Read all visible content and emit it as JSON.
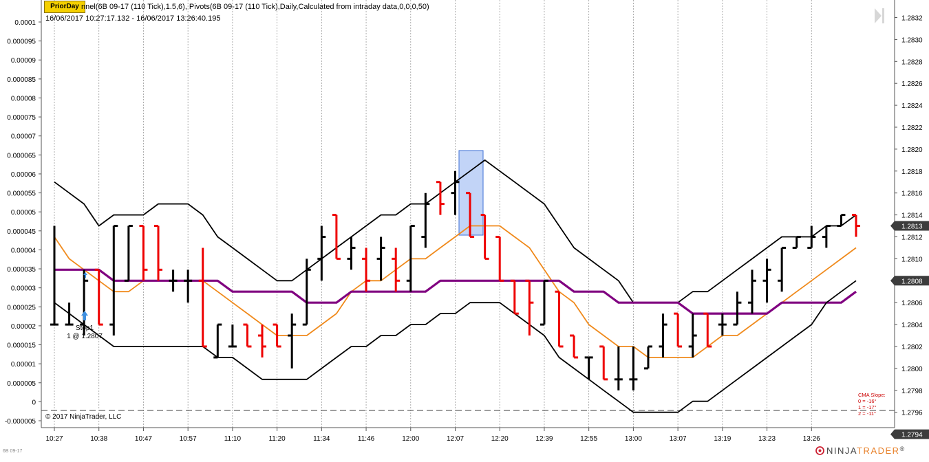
{
  "toolbar": {
    "prior_day_label": "PriorDay"
  },
  "header": {
    "indicator_line": "nnel(6B 09-17 (110 Tick),1.5,6), Pivots(6B 09-17 (110 Tick),Daily,Calculated from intraday data,0,0,0,50)",
    "date_range": "16/06/2017 10:27:17.132 - 16/06/2017 13:26:40.195"
  },
  "copyright": "© 2017 NinjaTrader, LLC",
  "instrument_tag": "6B 09-17",
  "brand": {
    "ninja": "NINJA",
    "trader": "TRADER"
  },
  "trade_marker": {
    "name": "Stop1",
    "detail": "1 @ 1.2807"
  },
  "slope_box": {
    "title": "CMA Slope:",
    "lines": [
      "0 = -16°",
      "1 = -17°",
      "2 = -11°"
    ]
  },
  "colors": {
    "up_bar": "#000000",
    "down_bar": "#ee0000",
    "cma": "#f08a1c",
    "purple_line": "#800080",
    "band": "#000000",
    "highlight": "#5b8fe6",
    "slope_text": "#cc0000"
  },
  "chart_data": {
    "type": "bar",
    "bar_style": "ohlc",
    "left_axis": {
      "ticks": [
        "0.0001",
        "0.000095",
        "0.00009",
        "0.000085",
        "0.00008",
        "0.000075",
        "0.00007",
        "0.000065",
        "0.00006",
        "0.000055",
        "0.00005",
        "0.000045",
        "0.00004",
        "0.000035",
        "0.00003",
        "0.000025",
        "0.00002",
        "0.000015",
        "0.00001",
        "0.000005",
        "0",
        "-0.000005"
      ],
      "range": [
        -5e-06,
        0.0001
      ]
    },
    "right_axis": {
      "ticks": [
        "1.2832",
        "1.2830",
        "1.2828",
        "1.2826",
        "1.2824",
        "1.2822",
        "1.2820",
        "1.2818",
        "1.2816",
        "1.2814",
        "1.2812",
        "1.2810",
        "1.2808",
        "1.2806",
        "1.2804",
        "1.2802",
        "1.2800",
        "1.2798",
        "1.2796"
      ],
      "range": [
        1.27946,
        1.28336
      ],
      "price_markers": [
        {
          "label": "1.2813",
          "value": 1.2813
        },
        {
          "label": "1.2808",
          "value": 1.2808
        },
        {
          "label": "1.2794",
          "value": 1.2794
        }
      ]
    },
    "x_axis": {
      "ticks": [
        "10:27",
        "10:38",
        "10:47",
        "10:57",
        "11:10",
        "11:20",
        "11:34",
        "11:46",
        "12:00",
        "12:07",
        "12:20",
        "12:39",
        "12:55",
        "13:00",
        "13:07",
        "13:19",
        "13:23",
        "13:26"
      ],
      "tick_bar_index": [
        0,
        3,
        6,
        9,
        12,
        15,
        18,
        21,
        24,
        27,
        30,
        33,
        36,
        39,
        42,
        45,
        48,
        51
      ]
    },
    "bars": [
      {
        "o": 1.2804,
        "h": 1.2813,
        "l": 1.2804,
        "c": 1.2804
      },
      {
        "o": 1.2804,
        "h": 1.2806,
        "l": 1.2804,
        "c": 1.2804
      },
      {
        "o": 1.2804,
        "h": 1.2809,
        "l": 1.2803,
        "c": 1.2808
      },
      {
        "o": 1.2809,
        "h": 1.2809,
        "l": 1.2804,
        "c": 1.2804
      },
      {
        "o": 1.2804,
        "h": 1.2813,
        "l": 1.2803,
        "c": 1.2813
      },
      {
        "o": 1.2808,
        "h": 1.2813,
        "l": 1.2808,
        "c": 1.2813
      },
      {
        "o": 1.2813,
        "h": 1.2813,
        "l": 1.2808,
        "c": 1.2809
      },
      {
        "o": 1.2813,
        "h": 1.2813,
        "l": 1.2808,
        "c": 1.2809
      },
      {
        "o": 1.2808,
        "h": 1.2809,
        "l": 1.2807,
        "c": 1.2808
      },
      {
        "o": 1.2808,
        "h": 1.2809,
        "l": 1.2806,
        "c": 1.2808
      },
      {
        "o": 1.2808,
        "h": 1.2811,
        "l": 1.2802,
        "c": 1.2802
      },
      {
        "o": 1.2801,
        "h": 1.2804,
        "l": 1.2801,
        "c": 1.2804
      },
      {
        "o": 1.2802,
        "h": 1.2804,
        "l": 1.2802,
        "c": 1.2802
      },
      {
        "o": 1.2804,
        "h": 1.2804,
        "l": 1.2802,
        "c": 1.2802
      },
      {
        "o": 1.2803,
        "h": 1.2804,
        "l": 1.2801,
        "c": 1.2802
      },
      {
        "o": 1.2804,
        "h": 1.2804,
        "l": 1.2802,
        "c": 1.2802
      },
      {
        "o": 1.2803,
        "h": 1.2805,
        "l": 1.28,
        "c": 1.2804
      },
      {
        "o": 1.2804,
        "h": 1.281,
        "l": 1.2804,
        "c": 1.2809
      },
      {
        "o": 1.281,
        "h": 1.2813,
        "l": 1.2808,
        "c": 1.2812
      },
      {
        "o": 1.2814,
        "h": 1.2814,
        "l": 1.281,
        "c": 1.281
      },
      {
        "o": 1.281,
        "h": 1.2812,
        "l": 1.2809,
        "c": 1.2811
      },
      {
        "o": 1.281,
        "h": 1.2811,
        "l": 1.2807,
        "c": 1.2808
      },
      {
        "o": 1.281,
        "h": 1.2812,
        "l": 1.2808,
        "c": 1.2811
      },
      {
        "o": 1.281,
        "h": 1.2811,
        "l": 1.2807,
        "c": 1.2808
      },
      {
        "o": 1.2808,
        "h": 1.2813,
        "l": 1.2807,
        "c": 1.2813
      },
      {
        "o": 1.2812,
        "h": 1.2816,
        "l": 1.2811,
        "c": 1.2815
      },
      {
        "o": 1.2817,
        "h": 1.2817,
        "l": 1.2814,
        "c": 1.2815
      },
      {
        "o": 1.2816,
        "h": 1.2818,
        "l": 1.2814,
        "c": 1.2817
      },
      {
        "o": 1.2816,
        "h": 1.2816,
        "l": 1.2812,
        "c": 1.2812
      },
      {
        "o": 1.2814,
        "h": 1.2814,
        "l": 1.281,
        "c": 1.281
      },
      {
        "o": 1.2812,
        "h": 1.2812,
        "l": 1.2808,
        "c": 1.2808
      },
      {
        "o": 1.2808,
        "h": 1.2808,
        "l": 1.2805,
        "c": 1.2805
      },
      {
        "o": 1.2808,
        "h": 1.2808,
        "l": 1.2803,
        "c": 1.2806
      },
      {
        "o": 1.2804,
        "h": 1.2808,
        "l": 1.2804,
        "c": 1.2808
      },
      {
        "o": 1.2807,
        "h": 1.2807,
        "l": 1.2802,
        "c": 1.2802
      },
      {
        "o": 1.2803,
        "h": 1.2803,
        "l": 1.2801,
        "c": 1.2801
      },
      {
        "o": 1.2801,
        "h": 1.2801,
        "l": 1.2799,
        "c": 1.2801
      },
      {
        "o": 1.2802,
        "h": 1.2802,
        "l": 1.2799,
        "c": 1.2799
      },
      {
        "o": 1.2799,
        "h": 1.2802,
        "l": 1.2798,
        "c": 1.2799
      },
      {
        "o": 1.2799,
        "h": 1.2802,
        "l": 1.2798,
        "c": 1.2799
      },
      {
        "o": 1.28,
        "h": 1.2802,
        "l": 1.28,
        "c": 1.2802
      },
      {
        "o": 1.2802,
        "h": 1.2805,
        "l": 1.2801,
        "c": 1.2804
      },
      {
        "o": 1.2805,
        "h": 1.2805,
        "l": 1.2802,
        "c": 1.2802
      },
      {
        "o": 1.2802,
        "h": 1.2805,
        "l": 1.2801,
        "c": 1.2803
      },
      {
        "o": 1.2805,
        "h": 1.2805,
        "l": 1.2802,
        "c": 1.2802
      },
      {
        "o": 1.2804,
        "h": 1.2805,
        "l": 1.2803,
        "c": 1.2804
      },
      {
        "o": 1.2804,
        "h": 1.2807,
        "l": 1.2804,
        "c": 1.2806
      },
      {
        "o": 1.2806,
        "h": 1.2809,
        "l": 1.2805,
        "c": 1.2808
      },
      {
        "o": 1.2808,
        "h": 1.281,
        "l": 1.2806,
        "c": 1.2809
      },
      {
        "o": 1.2808,
        "h": 1.2811,
        "l": 1.2807,
        "c": 1.2811
      },
      {
        "o": 1.2811,
        "h": 1.2812,
        "l": 1.2811,
        "c": 1.2812
      },
      {
        "o": 1.2811,
        "h": 1.2813,
        "l": 1.2811,
        "c": 1.2812
      },
      {
        "o": 1.2812,
        "h": 1.2813,
        "l": 1.2811,
        "c": 1.2813
      },
      {
        "o": 1.2813,
        "h": 1.2814,
        "l": 1.2813,
        "c": 1.2814
      },
      {
        "o": 1.2814,
        "h": 1.2814,
        "l": 1.2812,
        "c": 1.2813
      }
    ],
    "series": [
      {
        "values": [
          1.2817,
          1.2816,
          1.2815,
          1.2813,
          1.2814,
          1.2814,
          1.2814,
          1.2815,
          1.2815,
          1.2815,
          1.2814,
          1.2812,
          1.2811,
          1.281,
          1.2809,
          1.2808,
          1.2808,
          1.2809,
          1.281,
          1.2811,
          1.2812,
          1.2813,
          1.2814,
          1.2814,
          1.2815,
          1.2815,
          1.2816,
          1.2817,
          1.2818,
          1.2819,
          1.2818,
          1.2817,
          1.2816,
          1.2815,
          1.2813,
          1.2811,
          1.281,
          1.2809,
          1.2808,
          1.2806,
          1.2806,
          1.2806,
          1.2806,
          1.2807,
          1.2807,
          1.2808,
          1.2809,
          1.281,
          1.2811,
          1.2812,
          1.2812,
          1.2812,
          1.2813,
          1.2813,
          1.2814
        ]
      },
      {
        "values": [
          1.2812,
          1.281,
          1.2809,
          1.2808,
          1.2807,
          1.2807,
          1.2808,
          1.2808,
          1.2808,
          1.2808,
          1.2808,
          1.2807,
          1.2806,
          1.2805,
          1.2804,
          1.2803,
          1.2803,
          1.2803,
          1.2804,
          1.2805,
          1.2807,
          1.2808,
          1.2808,
          1.2809,
          1.281,
          1.281,
          1.2811,
          1.2812,
          1.2813,
          1.2813,
          1.2813,
          1.2812,
          1.2811,
          1.2809,
          1.2807,
          1.2806,
          1.2804,
          1.2803,
          1.2802,
          1.2802,
          1.2801,
          1.2801,
          1.2801,
          1.2801,
          1.2802,
          1.2803,
          1.2803,
          1.2804,
          1.2805,
          1.2806,
          1.2807,
          1.2808,
          1.2809,
          1.281,
          1.2811
        ]
      },
      {
        "values": [
          1.2809,
          1.2809,
          1.2809,
          1.2809,
          1.2808,
          1.2808,
          1.2808,
          1.2808,
          1.2808,
          1.2808,
          1.2808,
          1.2808,
          1.2807,
          1.2807,
          1.2807,
          1.2807,
          1.2807,
          1.2806,
          1.2806,
          1.2806,
          1.2807,
          1.2807,
          1.2807,
          1.2807,
          1.2807,
          1.2807,
          1.2808,
          1.2808,
          1.2808,
          1.2808,
          1.2808,
          1.2808,
          1.2808,
          1.2808,
          1.2808,
          1.2807,
          1.2807,
          1.2807,
          1.2806,
          1.2806,
          1.2806,
          1.2806,
          1.2806,
          1.2805,
          1.2805,
          1.2805,
          1.2805,
          1.2805,
          1.2805,
          1.2806,
          1.2806,
          1.2806,
          1.2806,
          1.2806,
          1.2807
        ]
      },
      {
        "values": [
          1.2806,
          1.2805,
          1.2804,
          1.2803,
          1.2802,
          1.2802,
          1.2802,
          1.2802,
          1.2802,
          1.2802,
          1.2802,
          1.2801,
          1.2801,
          1.28,
          1.2799,
          1.2799,
          1.2799,
          1.2799,
          1.28,
          1.2801,
          1.2802,
          1.2802,
          1.2803,
          1.2803,
          1.2804,
          1.2804,
          1.2805,
          1.2805,
          1.2806,
          1.2806,
          1.2806,
          1.2805,
          1.2804,
          1.2803,
          1.2801,
          1.28,
          1.2799,
          1.2798,
          1.2797,
          1.2796,
          1.2796,
          1.2796,
          1.2796,
          1.2797,
          1.2797,
          1.2798,
          1.2799,
          1.28,
          1.2801,
          1.2802,
          1.2803,
          1.2804,
          1.2806,
          1.2807,
          1.2808
        ]
      }
    ]
  }
}
